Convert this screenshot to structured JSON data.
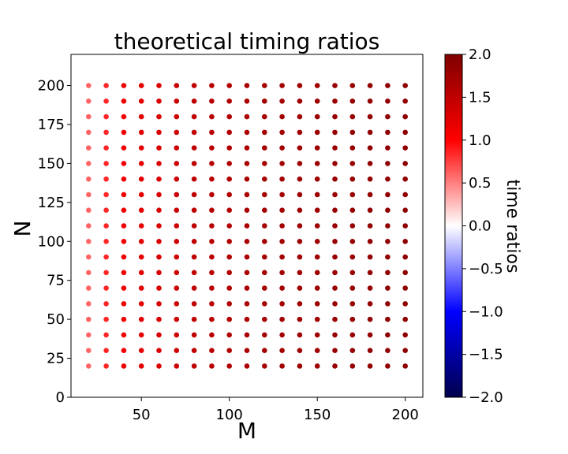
{
  "chart_data": {
    "type": "scatter",
    "title": "theoretical timing ratios",
    "xlabel": "M",
    "ylabel": "N",
    "xlim": [
      10,
      210
    ],
    "ylim": [
      0,
      220
    ],
    "x_ticks": [
      50,
      100,
      150,
      200
    ],
    "y_ticks": [
      0,
      25,
      50,
      75,
      100,
      125,
      150,
      175,
      200
    ],
    "grid": false,
    "x_values": [
      20,
      30,
      40,
      50,
      60,
      70,
      80,
      90,
      100,
      110,
      120,
      130,
      140,
      150,
      160,
      170,
      180,
      190,
      200
    ],
    "y_values": [
      20,
      30,
      40,
      50,
      60,
      70,
      80,
      90,
      100,
      110,
      120,
      130,
      140,
      150,
      160,
      170,
      180,
      190,
      200
    ],
    "ratio_by_x": [
      0.6,
      0.85,
      1.1,
      1.2,
      1.3,
      1.4,
      1.5,
      1.55,
      1.6,
      1.65,
      1.7,
      1.72,
      1.74,
      1.76,
      1.8,
      1.82,
      1.84,
      1.86,
      1.88
    ],
    "colorbar": {
      "label": "time ratios",
      "min": -2.0,
      "max": 2.0,
      "colormap": "seismic",
      "ticks": [
        "2.0",
        "1.5",
        "1.0",
        "0.5",
        "0.0",
        "−0.5",
        "−1.0",
        "−1.5",
        "−2.0"
      ],
      "tick_values": [
        2.0,
        1.5,
        1.0,
        0.5,
        0.0,
        -0.5,
        -1.0,
        -1.5,
        -2.0
      ]
    }
  }
}
